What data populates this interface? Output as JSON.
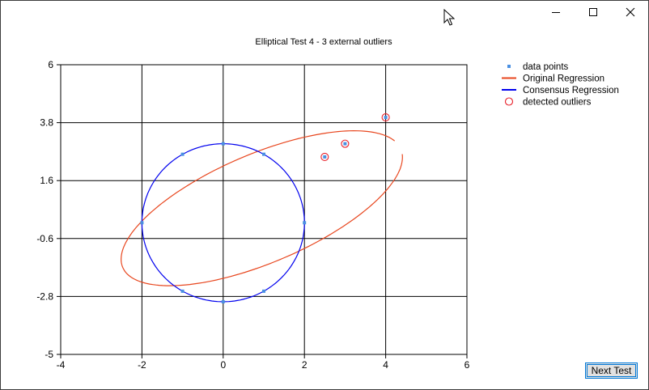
{
  "window": {
    "controls": {
      "minimize": "minimize-icon",
      "maximize": "maximize-icon",
      "close": "close-icon"
    }
  },
  "button": {
    "next_test_label": "Next Test"
  },
  "chart_data": {
    "type": "scatter",
    "title": "Elliptical Test 4 - 3 external outliers",
    "xlabel": "",
    "ylabel": "",
    "xlim": [
      -4,
      6
    ],
    "ylim": [
      -5,
      6
    ],
    "x_ticks": [
      "-4",
      "-2",
      "0",
      "2",
      "4",
      "6"
    ],
    "y_ticks": [
      "6",
      "3.8",
      "1.6",
      "-0.6",
      "-2.8",
      "-5"
    ],
    "x_tick_values": [
      -4,
      -2,
      0,
      2,
      4,
      6
    ],
    "y_tick_values": [
      6,
      3.8,
      1.6,
      -0.6,
      -2.8,
      -5
    ],
    "grid": true,
    "legend_position": "right",
    "series": [
      {
        "name": "data points",
        "kind": "points",
        "color": "#4a90e2",
        "points": [
          [
            2,
            0
          ],
          [
            1,
            2.6
          ],
          [
            0,
            3
          ],
          [
            -1,
            2.6
          ],
          [
            -2,
            0
          ],
          [
            -1,
            -2.6
          ],
          [
            0,
            -3
          ],
          [
            1,
            -2.6
          ],
          [
            2.5,
            2.5
          ],
          [
            3,
            3
          ],
          [
            4,
            4
          ]
        ]
      },
      {
        "name": "Original Regression",
        "kind": "ellipse",
        "color": "#e8461e",
        "center": [
          0.95,
          0.55
        ],
        "semi_axes": [
          4.15,
          1.85
        ],
        "rotation_deg": 38,
        "arc": [
          0,
          344
        ]
      },
      {
        "name": "Consensus Regression",
        "kind": "ellipse",
        "color": "#0000ee",
        "center": [
          0,
          0
        ],
        "semi_axes": [
          2,
          3
        ],
        "rotation_deg": 0,
        "arc": [
          0,
          360
        ]
      },
      {
        "name": "detected outliers",
        "kind": "circles",
        "color": "#e8202a",
        "points": [
          [
            2.5,
            2.5
          ],
          [
            3,
            3
          ],
          [
            4,
            4
          ]
        ]
      }
    ]
  }
}
